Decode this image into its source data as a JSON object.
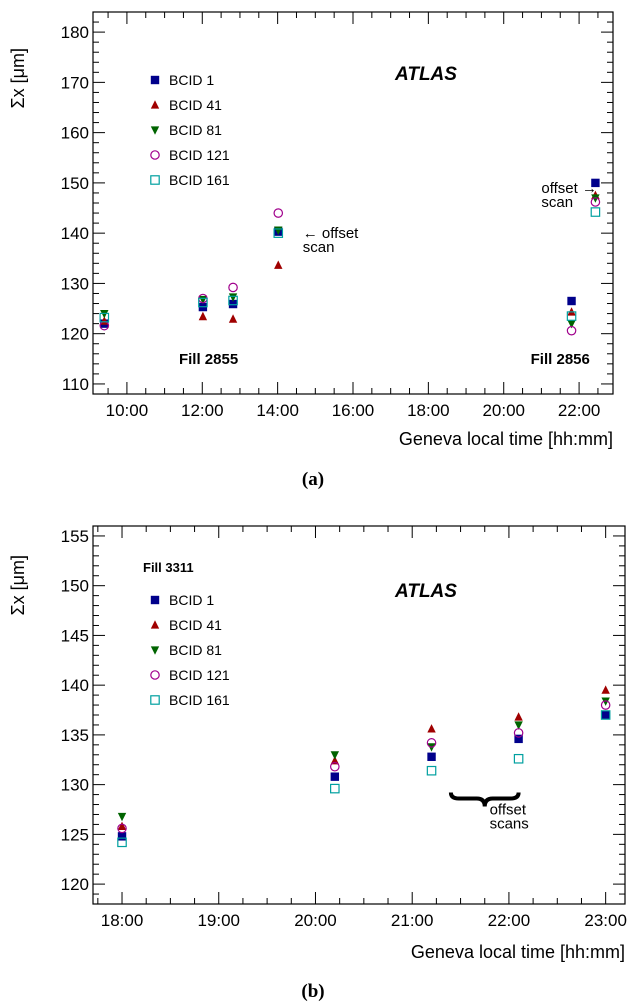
{
  "chart_data": [
    {
      "type": "scatter",
      "caption": "(a)",
      "ylabel": "Σx [μm]",
      "xlabel": "Geneva local time [hh:mm]",
      "ylim": [
        108,
        184
      ],
      "xlim": [
        "09:06",
        "22:54"
      ],
      "yticks": [
        110,
        120,
        130,
        140,
        150,
        160,
        170,
        180
      ],
      "xticks": [
        "10:00",
        "12:00",
        "14:00",
        "16:00",
        "18:00",
        "20:00",
        "22:00"
      ],
      "watermark": "ATLAS",
      "legend_position": "top-left",
      "annotations": [
        {
          "text": "← offset\nscan",
          "x": "14:40",
          "y": 139
        },
        {
          "text": "offset →\nscan",
          "x": "21:00",
          "y": 148
        },
        {
          "text": "Fill 2855",
          "x": "12:10",
          "y": 114
        },
        {
          "text": "Fill 2856",
          "x": "21:30",
          "y": 114
        }
      ],
      "series": [
        {
          "name": "BCID 1",
          "marker": "square-filled",
          "color": "#00008b",
          "x": [
            "09:24",
            "12:01",
            "12:49",
            "14:01",
            "21:48",
            "22:26"
          ],
          "values": [
            122,
            125.3,
            125.9,
            140.3,
            126.5,
            150
          ]
        },
        {
          "name": "BCID 41",
          "marker": "triangle-up-filled",
          "color": "#a00000",
          "x": [
            "09:24",
            "12:01",
            "12:49",
            "14:01",
            "21:48",
            "22:26"
          ],
          "values": [
            122.5,
            123.4,
            122.9,
            133.6,
            124.3,
            147.5
          ]
        },
        {
          "name": "BCID 81",
          "marker": "triangle-down-filled",
          "color": "#006400",
          "x": [
            "09:24",
            "12:01",
            "12:49",
            "14:01",
            "21:48",
            "22:26"
          ],
          "values": [
            124,
            126.8,
            127.3,
            140.6,
            122,
            147
          ]
        },
        {
          "name": "BCID 121",
          "marker": "circle-open",
          "color": "#a0008c",
          "x": [
            "09:24",
            "12:01",
            "12:49",
            "14:01",
            "21:48",
            "22:26"
          ],
          "values": [
            121.6,
            127,
            129.2,
            144,
            120.6,
            146.2
          ]
        },
        {
          "name": "BCID 161",
          "marker": "square-open",
          "color": "#00a0a0",
          "x": [
            "09:24",
            "12:01",
            "12:49",
            "14:01",
            "21:48",
            "22:26"
          ],
          "values": [
            123.2,
            126.2,
            126.6,
            140,
            123.5,
            144.2
          ]
        }
      ]
    },
    {
      "type": "scatter",
      "caption": "(b)",
      "ylabel": "Σx [μm]",
      "xlabel": "Geneva local time [hh:mm]",
      "ylim": [
        118,
        156
      ],
      "xlim": [
        "17:42",
        "23:12"
      ],
      "yticks": [
        120,
        125,
        130,
        135,
        140,
        145,
        150,
        155
      ],
      "xticks": [
        "18:00",
        "19:00",
        "20:00",
        "21:00",
        "22:00",
        "23:00"
      ],
      "watermark": "ATLAS",
      "fill_label": "Fill 3311",
      "legend_position": "top-left",
      "annotations": [
        {
          "text": "offset\nscans",
          "x": "21:48",
          "y": 127
        }
      ],
      "series": [
        {
          "name": "BCID 1",
          "marker": "square-filled",
          "color": "#00008b",
          "x": [
            "18:00",
            "20:12",
            "21:12",
            "22:06",
            "23:00"
          ],
          "values": [
            124.8,
            130.8,
            132.8,
            134.6,
            137
          ]
        },
        {
          "name": "BCID 41",
          "marker": "triangle-up-filled",
          "color": "#a00000",
          "x": [
            "18:00",
            "20:12",
            "21:12",
            "22:06",
            "23:00"
          ],
          "values": [
            125.8,
            132.4,
            135.6,
            136.8,
            139.5
          ]
        },
        {
          "name": "BCID 81",
          "marker": "triangle-down-filled",
          "color": "#006400",
          "x": [
            "18:00",
            "20:12",
            "21:12",
            "22:06",
            "23:00"
          ],
          "values": [
            126.8,
            133,
            133.8,
            136,
            138.4
          ]
        },
        {
          "name": "BCID 121",
          "marker": "circle-open",
          "color": "#a0008c",
          "x": [
            "18:00",
            "20:12",
            "21:12",
            "22:06",
            "23:00"
          ],
          "values": [
            125.6,
            131.8,
            134.2,
            135.2,
            138
          ]
        },
        {
          "name": "BCID 161",
          "marker": "square-open",
          "color": "#00a0a0",
          "x": [
            "18:00",
            "20:12",
            "21:12",
            "22:06",
            "23:00"
          ],
          "values": [
            124.2,
            129.6,
            131.4,
            132.6,
            137
          ]
        }
      ]
    }
  ]
}
